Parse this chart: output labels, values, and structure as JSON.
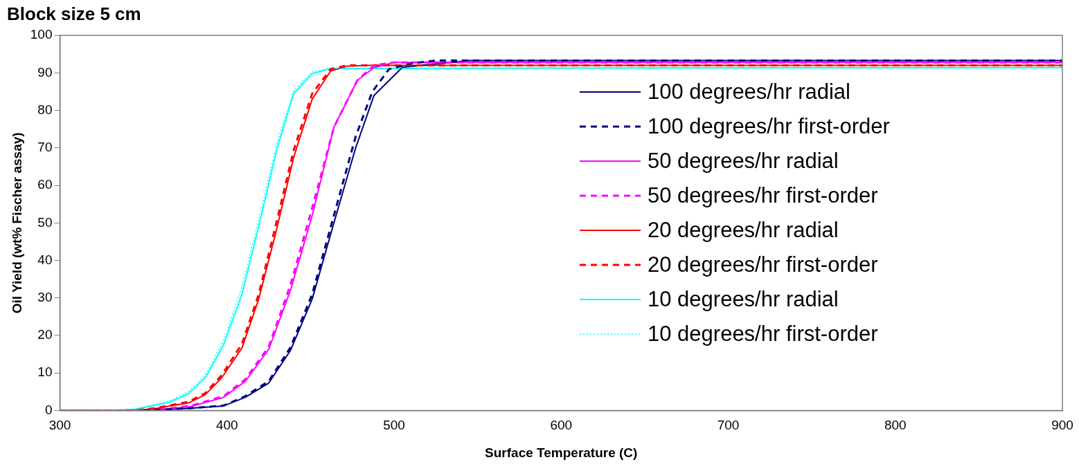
{
  "chart_data": {
    "type": "line",
    "title": "Block size 5 cm",
    "xlabel": "Surface Temperature (C)",
    "ylabel": "Oil Yield (wt% Fischer assay)",
    "xlim": [
      300,
      900
    ],
    "xticks": [
      300,
      400,
      500,
      600,
      700,
      800,
      900
    ],
    "ylim": [
      0,
      100
    ],
    "yticks": [
      0,
      10,
      20,
      30,
      40,
      50,
      60,
      70,
      80,
      90,
      100
    ],
    "grid": false,
    "legend": "right",
    "marker": "none",
    "series": [
      {
        "name": "100 degrees/hr radial",
        "color": "#000080",
        "line_style": "solid",
        "x": [
          350,
          375,
          398,
          411,
          425,
          438,
          451,
          464,
          477,
          488,
          505,
          545,
          900
        ],
        "values": [
          0,
          0.5,
          1.2,
          3.5,
          7.3,
          16,
          29.7,
          50,
          70,
          84,
          91.5,
          93.3,
          93.3
        ]
      },
      {
        "name": "100 degrees/hr first-order",
        "color": "#000080",
        "line_style": "dashed",
        "x": [
          350,
          375,
          398,
          411,
          425,
          438,
          451,
          464,
          477,
          487,
          497,
          510,
          525,
          900
        ],
        "values": [
          0,
          0.5,
          1.3,
          3.8,
          7.8,
          16.8,
          31,
          52,
          73,
          85,
          91,
          92.5,
          93.3,
          93.3
        ]
      },
      {
        "name": "50 degrees/hr radial",
        "color": "#ff00ff",
        "line_style": "solid",
        "x": [
          300,
          355,
          378,
          398,
          411,
          425,
          438,
          451,
          464,
          478,
          488,
          500,
          900
        ],
        "values": [
          0,
          0,
          1,
          3.5,
          7.8,
          16.3,
          32,
          52,
          75.5,
          88,
          91.4,
          92.8,
          92.8
        ]
      },
      {
        "name": "50 degrees/hr first-order",
        "color": "#ff00ff",
        "line_style": "dashed",
        "x": [
          300,
          355,
          378,
          398,
          411,
          425,
          438,
          451,
          464,
          478,
          488,
          500,
          900
        ],
        "values": [
          0,
          0,
          1.2,
          3.8,
          8.3,
          17,
          33.5,
          54,
          75.5,
          88,
          92,
          92.8,
          92.8
        ]
      },
      {
        "name": "20 degrees/hr radial",
        "color": "#ff0000",
        "line_style": "solid",
        "x": [
          300,
          345,
          357,
          377,
          387,
          397,
          409,
          419,
          429,
          440,
          451,
          462,
          472,
          485,
          900
        ],
        "values": [
          0,
          0,
          0.5,
          2,
          4.2,
          8.8,
          16.7,
          29.7,
          47,
          67.6,
          83,
          90.5,
          91.8,
          92,
          92
        ]
      },
      {
        "name": "20 degrees/hr first-order",
        "color": "#ff0000",
        "line_style": "dashed",
        "x": [
          300,
          345,
          357,
          377,
          387,
          397,
          409,
          419,
          429,
          440,
          451,
          462,
          472,
          485,
          900
        ],
        "values": [
          0,
          0,
          0.6,
          2.3,
          4.6,
          9.5,
          17.8,
          31,
          49,
          69.5,
          84.5,
          91,
          92,
          92,
          92
        ]
      },
      {
        "name": "10 degrees/hr radial",
        "color": "#00ffff",
        "line_style": "solid",
        "x": [
          300,
          330,
          345,
          365.6,
          377,
          387.5,
          398,
          409,
          420,
          430,
          440,
          451,
          462,
          900
        ],
        "values": [
          0,
          0,
          0.3,
          2.2,
          4.5,
          9,
          17.6,
          31,
          51,
          69.9,
          84.6,
          89.8,
          91.2,
          91.4
        ]
      },
      {
        "name": "10 degrees/hr first-order",
        "color": "#00ffff",
        "line_style": "dotted",
        "x": [
          300,
          330,
          345,
          365.6,
          377,
          387.5,
          398,
          409,
          420,
          430,
          440,
          451,
          462,
          900
        ],
        "values": [
          0,
          0,
          0.4,
          2.5,
          5,
          9.7,
          18.8,
          33,
          53,
          71.5,
          85.5,
          90.3,
          91.2,
          91.4
        ]
      }
    ]
  }
}
